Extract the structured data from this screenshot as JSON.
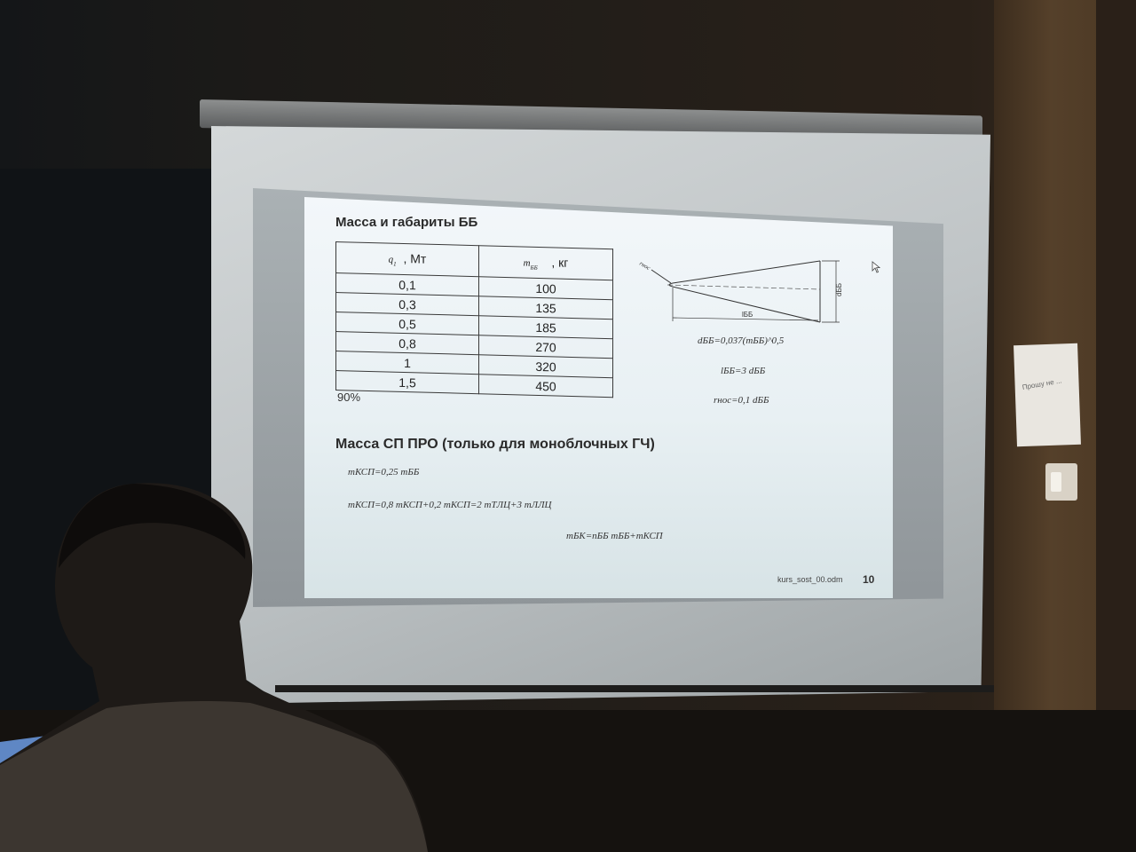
{
  "slide": {
    "section1_title": "Масса и габариты ББ",
    "table": {
      "col1_var": "q",
      "col1_sub": "1",
      "col1_unit": ", Мт",
      "col2_var": "m",
      "col2_sub": "ББ",
      "col2_unit": ", кг",
      "rows": [
        {
          "q": "0,1",
          "m": "100"
        },
        {
          "q": "0,3",
          "m": "135"
        },
        {
          "q": "0,5",
          "m": "185"
        },
        {
          "q": "0,8",
          "m": "270"
        },
        {
          "q": "1",
          "m": "320"
        },
        {
          "q": "1,5",
          "m": "450"
        }
      ]
    },
    "table_note": "90%",
    "cone": {
      "label_r": "rнос",
      "label_d": "dББ",
      "label_l": "lББ"
    },
    "formulas_right": [
      "dББ=0,037(mББ)^0,5",
      "lББ=3 dББ",
      "rнос=0,1 dББ"
    ],
    "section2_title": "Масса СП ПРО (только для моноблочных ГЧ)",
    "formulas_bottom": [
      "mКСП=0,25 mББ",
      "mКСП=0,8 mКСП+0,2 mКСП=2 mТЛЦ+3 mЛЛЦ",
      "mБК=nББ mББ+mКСП"
    ],
    "footer_file": "kurs_sost_00.odm",
    "page_number": "10"
  },
  "wall_note": "Прошу не ...",
  "colors": {
    "slide_bg": "#eef4f7",
    "room_dark": "#1a1714",
    "wall_wood": "#4a3723",
    "screen_frame": "#c4c9cb"
  }
}
